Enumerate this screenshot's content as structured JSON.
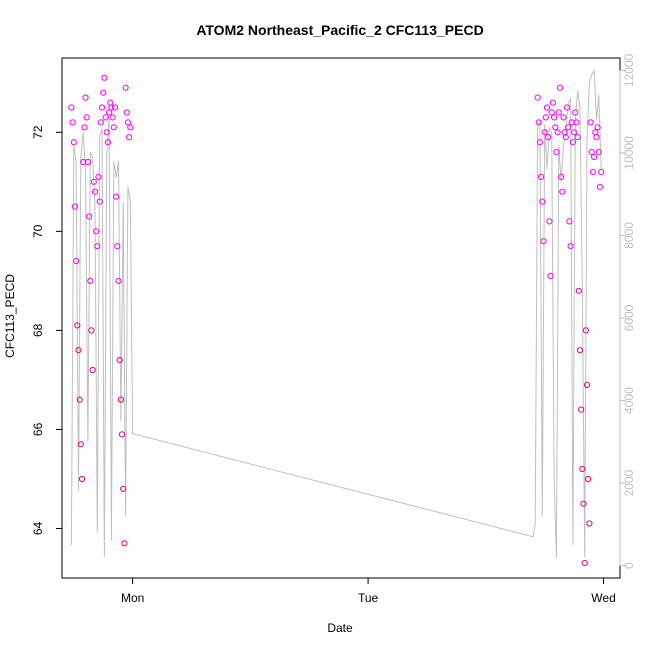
{
  "chart_data": {
    "type": "scatter",
    "title": "ATOM2 Northeast_Pacific_2 CFC113_PECD",
    "xlabel": "Date",
    "ylabel": "CFC113_PECD",
    "x_ticks": [
      "Mon",
      "Tue",
      "Wed"
    ],
    "y_ticks": [
      "64",
      "66",
      "68",
      "70",
      "72"
    ],
    "y2_ticks": [
      "0",
      "2000",
      "4000",
      "6000",
      "8000",
      "10000",
      "12000"
    ],
    "x_range_days": [
      -0.3,
      2.07
    ],
    "ylim": [
      63.0,
      73.5
    ],
    "y2lim": [
      -300,
      12300
    ],
    "colors": {
      "magenta": "#ff00ff",
      "deep_pink": "#e6007e",
      "line": "#bfbfbf",
      "frame": "#000000"
    },
    "series": [
      {
        "kind": "points",
        "x_days": [
          -0.26,
          -0.255,
          -0.25,
          -0.245,
          -0.24,
          -0.235,
          -0.23,
          -0.225,
          -0.22,
          -0.215,
          -0.21,
          -0.205,
          -0.2,
          -0.195,
          -0.19,
          -0.185,
          -0.18,
          -0.175,
          -0.17,
          -0.165,
          -0.16,
          -0.155,
          -0.15,
          -0.145,
          -0.14,
          -0.135,
          -0.13,
          -0.125,
          -0.12,
          -0.115,
          -0.11,
          -0.105,
          -0.1,
          -0.095,
          -0.09,
          -0.085,
          -0.08,
          -0.075,
          -0.07,
          -0.065,
          -0.06,
          -0.055,
          -0.05,
          -0.045,
          -0.04,
          -0.035,
          -0.03,
          -0.025,
          -0.02,
          -0.015,
          -0.01
        ],
        "y": [
          72.5,
          72.2,
          71.8,
          70.5,
          69.4,
          68.1,
          67.6,
          66.6,
          65.7,
          65.0,
          71.4,
          72.1,
          72.7,
          72.3,
          71.4,
          70.3,
          69.0,
          68.0,
          67.2,
          71.0,
          70.8,
          70.0,
          69.7,
          71.1,
          70.6,
          72.2,
          72.5,
          72.8,
          73.1,
          72.3,
          72.0,
          71.8,
          72.4,
          72.6,
          72.5,
          72.3,
          72.1,
          72.5,
          70.7,
          69.7,
          69.0,
          67.4,
          66.6,
          65.9,
          64.8,
          63.7,
          72.9,
          72.4,
          72.2,
          71.9,
          72.1
        ]
      },
      {
        "kind": "points",
        "x_days": [
          1.72,
          1.725,
          1.73,
          1.735,
          1.74,
          1.745,
          1.75,
          1.755,
          1.76,
          1.765,
          1.77,
          1.775,
          1.78,
          1.785,
          1.79,
          1.795,
          1.8,
          1.805,
          1.81,
          1.815,
          1.82,
          1.825,
          1.83,
          1.835,
          1.84,
          1.845,
          1.85,
          1.855,
          1.86,
          1.865,
          1.87,
          1.875,
          1.88,
          1.885,
          1.89,
          1.895,
          1.9,
          1.905,
          1.91,
          1.915,
          1.92,
          1.925,
          1.93,
          1.935,
          1.94,
          1.945,
          1.95,
          1.955,
          1.96,
          1.965,
          1.97,
          1.975,
          1.98,
          1.985,
          1.99
        ],
        "y": [
          72.7,
          72.2,
          71.8,
          71.1,
          70.6,
          69.8,
          72.0,
          72.3,
          72.5,
          71.9,
          70.2,
          69.1,
          72.4,
          72.6,
          72.3,
          72.1,
          71.6,
          72.0,
          72.4,
          72.9,
          71.1,
          70.8,
          72.3,
          72.0,
          71.9,
          72.5,
          72.1,
          70.2,
          69.7,
          72.2,
          71.8,
          72.0,
          72.4,
          72.2,
          71.9,
          68.8,
          67.6,
          66.4,
          65.2,
          64.5,
          63.3,
          68.0,
          66.9,
          65.0,
          64.1,
          72.2,
          71.6,
          71.2,
          71.5,
          72.0,
          71.9,
          72.1,
          71.6,
          70.9,
          71.2
        ]
      },
      {
        "kind": "line",
        "axis": "right",
        "x_days": [
          -0.26,
          -0.25,
          -0.24,
          -0.23,
          -0.22,
          -0.21,
          -0.2,
          -0.19,
          -0.18,
          -0.17,
          -0.16,
          -0.15,
          -0.14,
          -0.13,
          -0.12,
          -0.11,
          -0.1,
          -0.09,
          -0.08,
          -0.07,
          -0.06,
          -0.05,
          -0.04,
          -0.03,
          -0.02,
          -0.01,
          0.0,
          1.7,
          1.71,
          1.72,
          1.73,
          1.74,
          1.75,
          1.76,
          1.77,
          1.78,
          1.79,
          1.8,
          1.81,
          1.82,
          1.83,
          1.84,
          1.85,
          1.86,
          1.87,
          1.88,
          1.89,
          1.9,
          1.91,
          1.92,
          1.93,
          1.94,
          1.95,
          1.96,
          1.97,
          1.98,
          1.99
        ],
        "y": [
          500,
          10200,
          9800,
          1800,
          9900,
          10500,
          9600,
          3000,
          10000,
          9900,
          8700,
          800,
          10400,
          10600,
          200,
          9900,
          10900,
          600,
          9800,
          9400,
          9800,
          3500,
          8800,
          1200,
          9200,
          8800,
          3200,
          700,
          1000,
          10600,
          10800,
          1200,
          10700,
          9600,
          10600,
          10500,
          2100,
          200,
          10200,
          9300,
          10200,
          10500,
          11200,
          11300,
          500,
          10800,
          11500,
          11100,
          6800,
          200,
          10400,
          11700,
          11900,
          12000,
          10800,
          11400,
          9600
        ]
      }
    ]
  }
}
